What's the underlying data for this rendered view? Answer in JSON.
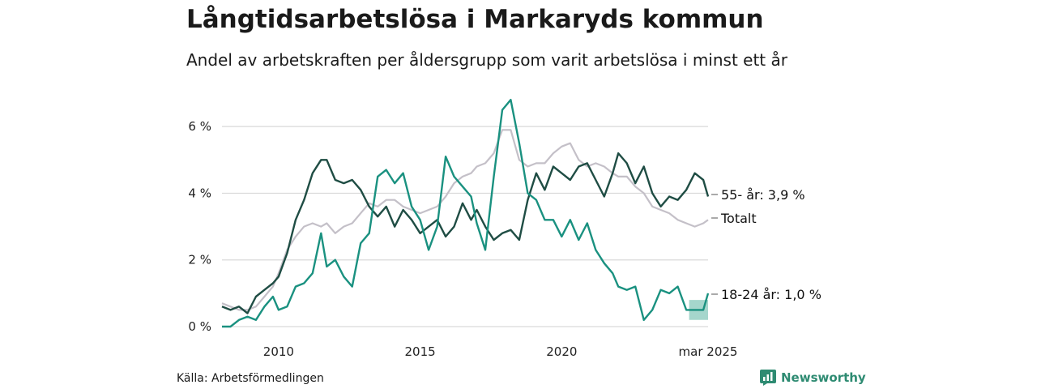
{
  "header": {
    "title": "Långtidsarbetslösa i Markaryds kommun",
    "subtitle": "Andel av arbetskraften per åldersgrupp som varit arbetslösa i minst ett år"
  },
  "footer": {
    "source": "Källa: Arbetsförmedlingen",
    "brand": "Newsworthy"
  },
  "colors": {
    "series_55": "#1f4d44",
    "series_total": "#c4c0c8",
    "series_18_24": "#1a9180",
    "band": "#7fc4b6",
    "grid": "#d9d9d9",
    "brand": "#2e8b72"
  },
  "chart_data": {
    "type": "line",
    "xlabel": "",
    "ylabel": "",
    "x_ticks": [
      "2010",
      "2015",
      "2020",
      "mar 2025"
    ],
    "y_ticks": [
      "0 %",
      "2 %",
      "4 %",
      "6 %"
    ],
    "ylim": [
      0,
      7
    ],
    "grid": true,
    "legend": "inline labels at end of lines",
    "series": [
      {
        "label": "55- år: 3,9 %",
        "x": [
          2008.0,
          2008.3,
          2008.6,
          2008.9,
          2009.2,
          2009.5,
          2009.8,
          2010.0,
          2010.3,
          2010.6,
          2010.9,
          2011.2,
          2011.5,
          2011.7,
          2012.0,
          2012.3,
          2012.6,
          2012.9,
          2013.2,
          2013.5,
          2013.8,
          2014.1,
          2014.4,
          2014.7,
          2015.0,
          2015.3,
          2015.6,
          2015.9,
          2016.2,
          2016.5,
          2016.8,
          2017.0,
          2017.3,
          2017.6,
          2017.9,
          2018.2,
          2018.5,
          2018.8,
          2019.1,
          2019.4,
          2019.7,
          2020.0,
          2020.3,
          2020.6,
          2020.9,
          2021.2,
          2021.5,
          2021.8,
          2022.0,
          2022.3,
          2022.6,
          2022.9,
          2023.2,
          2023.5,
          2023.8,
          2024.1,
          2024.4,
          2024.7,
          2025.0,
          2025.17
        ],
        "y": [
          0.6,
          0.5,
          0.6,
          0.4,
          0.9,
          1.1,
          1.3,
          1.5,
          2.2,
          3.2,
          3.8,
          4.6,
          5.0,
          5.0,
          4.4,
          4.3,
          4.4,
          4.1,
          3.6,
          3.3,
          3.6,
          3.0,
          3.5,
          3.2,
          2.8,
          3.0,
          3.2,
          2.7,
          3.0,
          3.7,
          3.2,
          3.5,
          3.0,
          2.6,
          2.8,
          2.9,
          2.6,
          3.8,
          4.6,
          4.1,
          4.8,
          4.6,
          4.4,
          4.8,
          4.9,
          4.4,
          3.9,
          4.6,
          5.2,
          4.9,
          4.3,
          4.8,
          4.0,
          3.6,
          3.9,
          3.8,
          4.1,
          4.6,
          4.4,
          3.9
        ]
      },
      {
        "label": "Totalt",
        "x": [
          2008.0,
          2008.3,
          2008.6,
          2008.9,
          2009.2,
          2009.5,
          2009.8,
          2010.0,
          2010.3,
          2010.6,
          2010.9,
          2011.2,
          2011.5,
          2011.7,
          2012.0,
          2012.3,
          2012.6,
          2012.9,
          2013.2,
          2013.5,
          2013.8,
          2014.1,
          2014.4,
          2014.7,
          2015.0,
          2015.3,
          2015.6,
          2015.9,
          2016.2,
          2016.5,
          2016.8,
          2017.0,
          2017.3,
          2017.6,
          2017.9,
          2018.2,
          2018.5,
          2018.8,
          2019.1,
          2019.4,
          2019.7,
          2020.0,
          2020.3,
          2020.6,
          2020.9,
          2021.2,
          2021.5,
          2021.8,
          2022.0,
          2022.3,
          2022.6,
          2022.9,
          2023.2,
          2023.5,
          2023.8,
          2024.1,
          2024.4,
          2024.7,
          2025.0,
          2025.17
        ],
        "y": [
          0.7,
          0.6,
          0.5,
          0.5,
          0.6,
          0.9,
          1.2,
          1.6,
          2.3,
          2.7,
          3.0,
          3.1,
          3.0,
          3.1,
          2.8,
          3.0,
          3.1,
          3.4,
          3.7,
          3.6,
          3.8,
          3.8,
          3.6,
          3.5,
          3.4,
          3.5,
          3.6,
          3.9,
          4.3,
          4.5,
          4.6,
          4.8,
          4.9,
          5.2,
          5.9,
          5.9,
          5.0,
          4.8,
          4.9,
          4.9,
          5.2,
          5.4,
          5.5,
          5.0,
          4.8,
          4.9,
          4.8,
          4.6,
          4.5,
          4.5,
          4.2,
          4.0,
          3.6,
          3.5,
          3.4,
          3.2,
          3.1,
          3.0,
          3.1,
          3.2
        ]
      },
      {
        "label": "18-24 år: 1,0 %",
        "x": [
          2008.0,
          2008.3,
          2008.6,
          2008.9,
          2009.2,
          2009.5,
          2009.8,
          2010.0,
          2010.3,
          2010.6,
          2010.9,
          2011.2,
          2011.5,
          2011.7,
          2012.0,
          2012.3,
          2012.6,
          2012.9,
          2013.2,
          2013.5,
          2013.8,
          2014.1,
          2014.4,
          2014.7,
          2015.0,
          2015.3,
          2015.6,
          2015.9,
          2016.2,
          2016.5,
          2016.8,
          2017.0,
          2017.3,
          2017.6,
          2017.9,
          2018.2,
          2018.5,
          2018.8,
          2019.1,
          2019.4,
          2019.7,
          2020.0,
          2020.3,
          2020.6,
          2020.9,
          2021.2,
          2021.5,
          2021.8,
          2022.0,
          2022.3,
          2022.6,
          2022.9,
          2023.2,
          2023.5,
          2023.8,
          2024.1,
          2024.4,
          2024.7,
          2025.0,
          2025.17
        ],
        "y": [
          0.0,
          0.0,
          0.2,
          0.3,
          0.2,
          0.6,
          0.9,
          0.5,
          0.6,
          1.2,
          1.3,
          1.6,
          2.8,
          1.8,
          2.0,
          1.5,
          1.2,
          2.5,
          2.8,
          4.5,
          4.7,
          4.3,
          4.6,
          3.6,
          3.2,
          2.3,
          3.0,
          5.1,
          4.5,
          4.2,
          3.9,
          3.1,
          2.3,
          4.5,
          6.5,
          6.8,
          5.5,
          4.0,
          3.8,
          3.2,
          3.2,
          2.7,
          3.2,
          2.6,
          3.1,
          2.3,
          1.9,
          1.6,
          1.2,
          1.1,
          1.2,
          0.2,
          0.5,
          1.1,
          1.0,
          1.2,
          0.5,
          0.5,
          0.5,
          1.0
        ],
        "band": {
          "x": [
            2024.5,
            2025.17
          ],
          "lower": [
            0.2,
            0.2
          ],
          "upper": [
            0.8,
            0.8
          ]
        }
      }
    ]
  }
}
